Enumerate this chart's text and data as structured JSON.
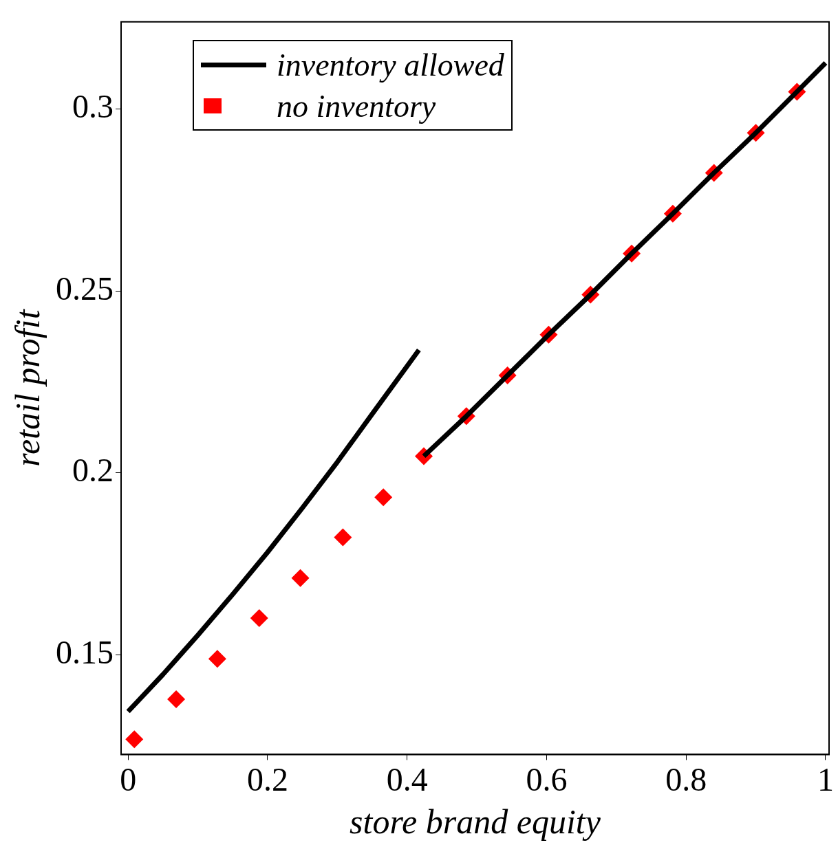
{
  "chart_data": {
    "type": "line",
    "xlabel": "store brand equity",
    "ylabel": "retail profit",
    "xlim": [
      -0.01,
      1.005
    ],
    "xticks": [
      0,
      0.2,
      0.4,
      0.6,
      0.8,
      1
    ],
    "ylim": [
      0.1226,
      0.324
    ],
    "yticks": [
      0.15,
      0.2,
      0.25,
      0.3
    ],
    "grid": false,
    "legend": "top left",
    "series": [
      {
        "name": "inventory allowed",
        "color": "#000000",
        "marker": "none",
        "x": [
          0,
          0.05,
          0.1,
          0.15,
          0.2,
          0.25,
          0.3,
          0.35,
          0.417,
          0.42,
          0.424,
          0.485,
          0.544,
          0.603,
          0.663,
          0.722,
          0.781,
          0.84,
          0.9,
          0.959,
          1.0
        ],
        "values": [
          0.1344,
          0.1446,
          0.1554,
          0.1666,
          0.1782,
          0.1904,
          0.203,
          0.2162,
          0.2338,
          null,
          0.2046,
          0.2156,
          0.2268,
          0.238,
          0.249,
          0.2603,
          0.2713,
          0.2825,
          0.2935,
          0.3048,
          0.3127
        ]
      },
      {
        "name": "no inventory",
        "color": "#ff0000",
        "type": "scatter",
        "marker": "diamond",
        "x": [
          0.009,
          0.069,
          0.128,
          0.188,
          0.247,
          0.308,
          0.366,
          0.424,
          0.485,
          0.544,
          0.603,
          0.663,
          0.722,
          0.781,
          0.84,
          0.9,
          0.959
        ],
        "values": [
          0.1268,
          0.1378,
          0.1489,
          0.1601,
          0.1711,
          0.1823,
          0.1933,
          0.2046,
          0.2156,
          0.2268,
          0.238,
          0.249,
          0.2603,
          0.2713,
          0.2825,
          0.2935,
          0.3048
        ]
      }
    ]
  }
}
